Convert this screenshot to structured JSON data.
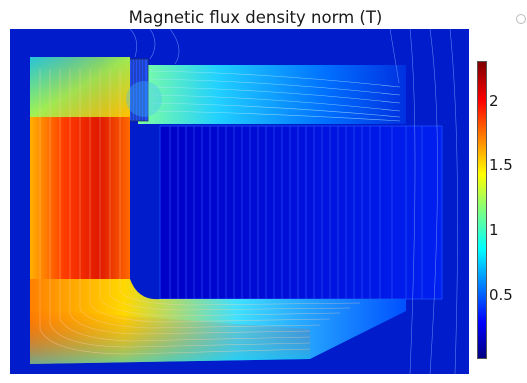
{
  "plot": {
    "title": "Magnetic flux density norm (T)"
  },
  "colorbar": {
    "ticks": [
      {
        "label": "2",
        "value": 2
      },
      {
        "label": "1.5",
        "value": 1.5
      },
      {
        "label": "1",
        "value": 1
      },
      {
        "label": "0.5",
        "value": 0.5
      }
    ],
    "min": 0.05,
    "max": 2.35
  },
  "colors": {
    "background_field": "#0018b8",
    "colormap": [
      "#00008f",
      "#0030ff",
      "#00d8ff",
      "#80ff80",
      "#ffe000",
      "#ff5a00",
      "#c00000",
      "#7a0000"
    ]
  }
}
